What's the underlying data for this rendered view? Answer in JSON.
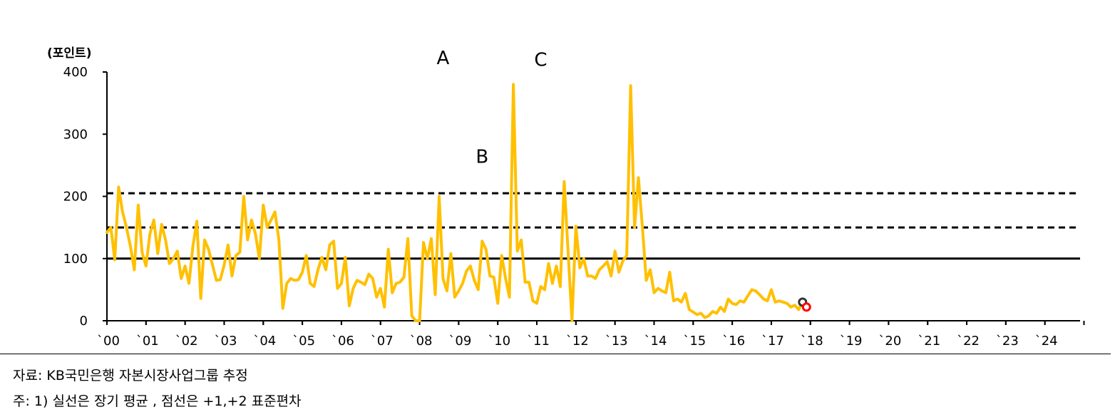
{
  "chart_data": {
    "type": "line",
    "unit_label": "(포인트)",
    "ylim": [
      0,
      400
    ],
    "y_ticks": [
      "0",
      "100",
      "200",
      "300",
      "400"
    ],
    "x_ticks": [
      "`00",
      "`01",
      "`02",
      "`03",
      "`04",
      "`05",
      "`06",
      "`07",
      "`08",
      "`09",
      "`10",
      "`11",
      "`12",
      "`13",
      "`14",
      "`15",
      "`16",
      "`17",
      "`18",
      "`19",
      "`20",
      "`21",
      "`22",
      "`23",
      "`24"
    ],
    "reference_lines": [
      {
        "value": 100,
        "style": "solid"
      },
      {
        "value": 150,
        "style": "dashed"
      },
      {
        "value": 205,
        "style": "dashed"
      }
    ],
    "annotations": [
      {
        "label": "A",
        "x": 2008.6,
        "y": 383
      },
      {
        "label": "B",
        "x": 2009.6,
        "y": 224
      },
      {
        "label": "C",
        "x": 2011.1,
        "y": 380
      }
    ],
    "series": [
      {
        "color": "#FFC000",
        "points": [
          [
            2000.0,
            142
          ],
          [
            2000.1,
            150
          ],
          [
            2000.2,
            98
          ],
          [
            2000.3,
            215
          ],
          [
            2000.4,
            175
          ],
          [
            2000.5,
            150
          ],
          [
            2000.6,
            120
          ],
          [
            2000.7,
            82
          ],
          [
            2000.8,
            186
          ],
          [
            2000.9,
            110
          ],
          [
            2001.0,
            88
          ],
          [
            2001.1,
            140
          ],
          [
            2001.2,
            162
          ],
          [
            2001.3,
            108
          ],
          [
            2001.4,
            155
          ],
          [
            2001.5,
            130
          ],
          [
            2001.6,
            92
          ],
          [
            2001.7,
            100
          ],
          [
            2001.8,
            112
          ],
          [
            2001.9,
            68
          ],
          [
            2002.0,
            88
          ],
          [
            2002.1,
            60
          ],
          [
            2002.2,
            120
          ],
          [
            2002.3,
            160
          ],
          [
            2002.4,
            36
          ],
          [
            2002.5,
            130
          ],
          [
            2002.6,
            115
          ],
          [
            2002.7,
            90
          ],
          [
            2002.8,
            65
          ],
          [
            2002.9,
            66
          ],
          [
            2003.0,
            90
          ],
          [
            2003.1,
            122
          ],
          [
            2003.2,
            72
          ],
          [
            2003.3,
            105
          ],
          [
            2003.4,
            110
          ],
          [
            2003.5,
            200
          ],
          [
            2003.6,
            130
          ],
          [
            2003.7,
            162
          ],
          [
            2003.8,
            140
          ],
          [
            2003.9,
            100
          ],
          [
            2004.0,
            186
          ],
          [
            2004.1,
            150
          ],
          [
            2004.2,
            162
          ],
          [
            2004.3,
            175
          ],
          [
            2004.4,
            130
          ],
          [
            2004.5,
            20
          ],
          [
            2004.6,
            60
          ],
          [
            2004.7,
            68
          ],
          [
            2004.8,
            65
          ],
          [
            2004.9,
            66
          ],
          [
            2005.0,
            78
          ],
          [
            2005.1,
            105
          ],
          [
            2005.2,
            60
          ],
          [
            2005.3,
            55
          ],
          [
            2005.4,
            82
          ],
          [
            2005.5,
            102
          ],
          [
            2005.6,
            82
          ],
          [
            2005.7,
            122
          ],
          [
            2005.8,
            128
          ],
          [
            2005.9,
            52
          ],
          [
            2006.0,
            60
          ],
          [
            2006.1,
            102
          ],
          [
            2006.2,
            24
          ],
          [
            2006.3,
            52
          ],
          [
            2006.4,
            65
          ],
          [
            2006.5,
            62
          ],
          [
            2006.6,
            58
          ],
          [
            2006.7,
            75
          ],
          [
            2006.8,
            68
          ],
          [
            2006.9,
            38
          ],
          [
            2007.0,
            52
          ],
          [
            2007.1,
            22
          ],
          [
            2007.2,
            115
          ],
          [
            2007.3,
            45
          ],
          [
            2007.4,
            60
          ],
          [
            2007.5,
            62
          ],
          [
            2007.6,
            70
          ],
          [
            2007.7,
            132
          ],
          [
            2007.8,
            8
          ],
          [
            2007.9,
            0
          ],
          [
            2008.0,
            0
          ],
          [
            2008.1,
            126
          ],
          [
            2008.2,
            100
          ],
          [
            2008.3,
            132
          ],
          [
            2008.4,
            42
          ],
          [
            2008.5,
            200
          ],
          [
            2008.6,
            68
          ],
          [
            2008.7,
            48
          ],
          [
            2008.8,
            108
          ],
          [
            2008.9,
            38
          ],
          [
            2009.0,
            48
          ],
          [
            2009.1,
            60
          ],
          [
            2009.2,
            80
          ],
          [
            2009.3,
            88
          ],
          [
            2009.4,
            65
          ],
          [
            2009.5,
            50
          ],
          [
            2009.6,
            128
          ],
          [
            2009.7,
            115
          ],
          [
            2009.8,
            72
          ],
          [
            2009.9,
            70
          ],
          [
            2010.0,
            28
          ],
          [
            2010.1,
            105
          ],
          [
            2010.2,
            68
          ],
          [
            2010.3,
            38
          ],
          [
            2010.4,
            380
          ],
          [
            2010.5,
            112
          ],
          [
            2010.6,
            130
          ],
          [
            2010.7,
            62
          ],
          [
            2010.8,
            62
          ],
          [
            2010.9,
            32
          ],
          [
            2011.0,
            28
          ],
          [
            2011.1,
            55
          ],
          [
            2011.2,
            50
          ],
          [
            2011.3,
            92
          ],
          [
            2011.4,
            60
          ],
          [
            2011.5,
            88
          ],
          [
            2011.6,
            55
          ],
          [
            2011.7,
            224
          ],
          [
            2011.8,
            110
          ],
          [
            2011.9,
            0
          ],
          [
            2012.0,
            152
          ],
          [
            2012.1,
            85
          ],
          [
            2012.2,
            100
          ],
          [
            2012.3,
            72
          ],
          [
            2012.4,
            72
          ],
          [
            2012.5,
            68
          ],
          [
            2012.6,
            82
          ],
          [
            2012.7,
            88
          ],
          [
            2012.8,
            95
          ],
          [
            2012.9,
            72
          ],
          [
            2013.0,
            112
          ],
          [
            2013.1,
            78
          ],
          [
            2013.2,
            96
          ],
          [
            2013.3,
            105
          ],
          [
            2013.4,
            378
          ],
          [
            2013.5,
            150
          ],
          [
            2013.6,
            230
          ],
          [
            2013.7,
            152
          ],
          [
            2013.8,
            65
          ],
          [
            2013.9,
            82
          ],
          [
            2014.0,
            45
          ],
          [
            2014.1,
            52
          ],
          [
            2014.2,
            48
          ],
          [
            2014.3,
            45
          ],
          [
            2014.4,
            78
          ],
          [
            2014.5,
            32
          ],
          [
            2014.6,
            35
          ],
          [
            2014.7,
            30
          ],
          [
            2014.8,
            44
          ],
          [
            2014.9,
            18
          ],
          [
            2015.0,
            14
          ],
          [
            2015.1,
            10
          ],
          [
            2015.2,
            12
          ],
          [
            2015.3,
            5
          ],
          [
            2015.4,
            8
          ],
          [
            2015.5,
            15
          ],
          [
            2015.6,
            12
          ],
          [
            2015.7,
            22
          ],
          [
            2015.8,
            15
          ],
          [
            2015.9,
            35
          ],
          [
            2016.0,
            28
          ],
          [
            2016.1,
            26
          ],
          [
            2016.2,
            32
          ],
          [
            2016.3,
            30
          ],
          [
            2016.4,
            40
          ],
          [
            2016.5,
            50
          ],
          [
            2016.6,
            48
          ],
          [
            2016.7,
            42
          ],
          [
            2016.8,
            35
          ],
          [
            2016.9,
            32
          ],
          [
            2017.0,
            50
          ],
          [
            2017.1,
            30
          ],
          [
            2017.2,
            32
          ],
          [
            2017.3,
            30
          ],
          [
            2017.4,
            28
          ],
          [
            2017.5,
            22
          ],
          [
            2017.6,
            25
          ],
          [
            2017.7,
            18
          ],
          [
            2017.8,
            30
          ],
          [
            2017.9,
            22
          ]
        ]
      }
    ]
  },
  "notes": {
    "source": "자료: KB국민은행 자본시장사업그룹 추정",
    "footnote": "주: 1) 실선은 장기 평균 , 점선은 +1,+2 표준편차"
  }
}
